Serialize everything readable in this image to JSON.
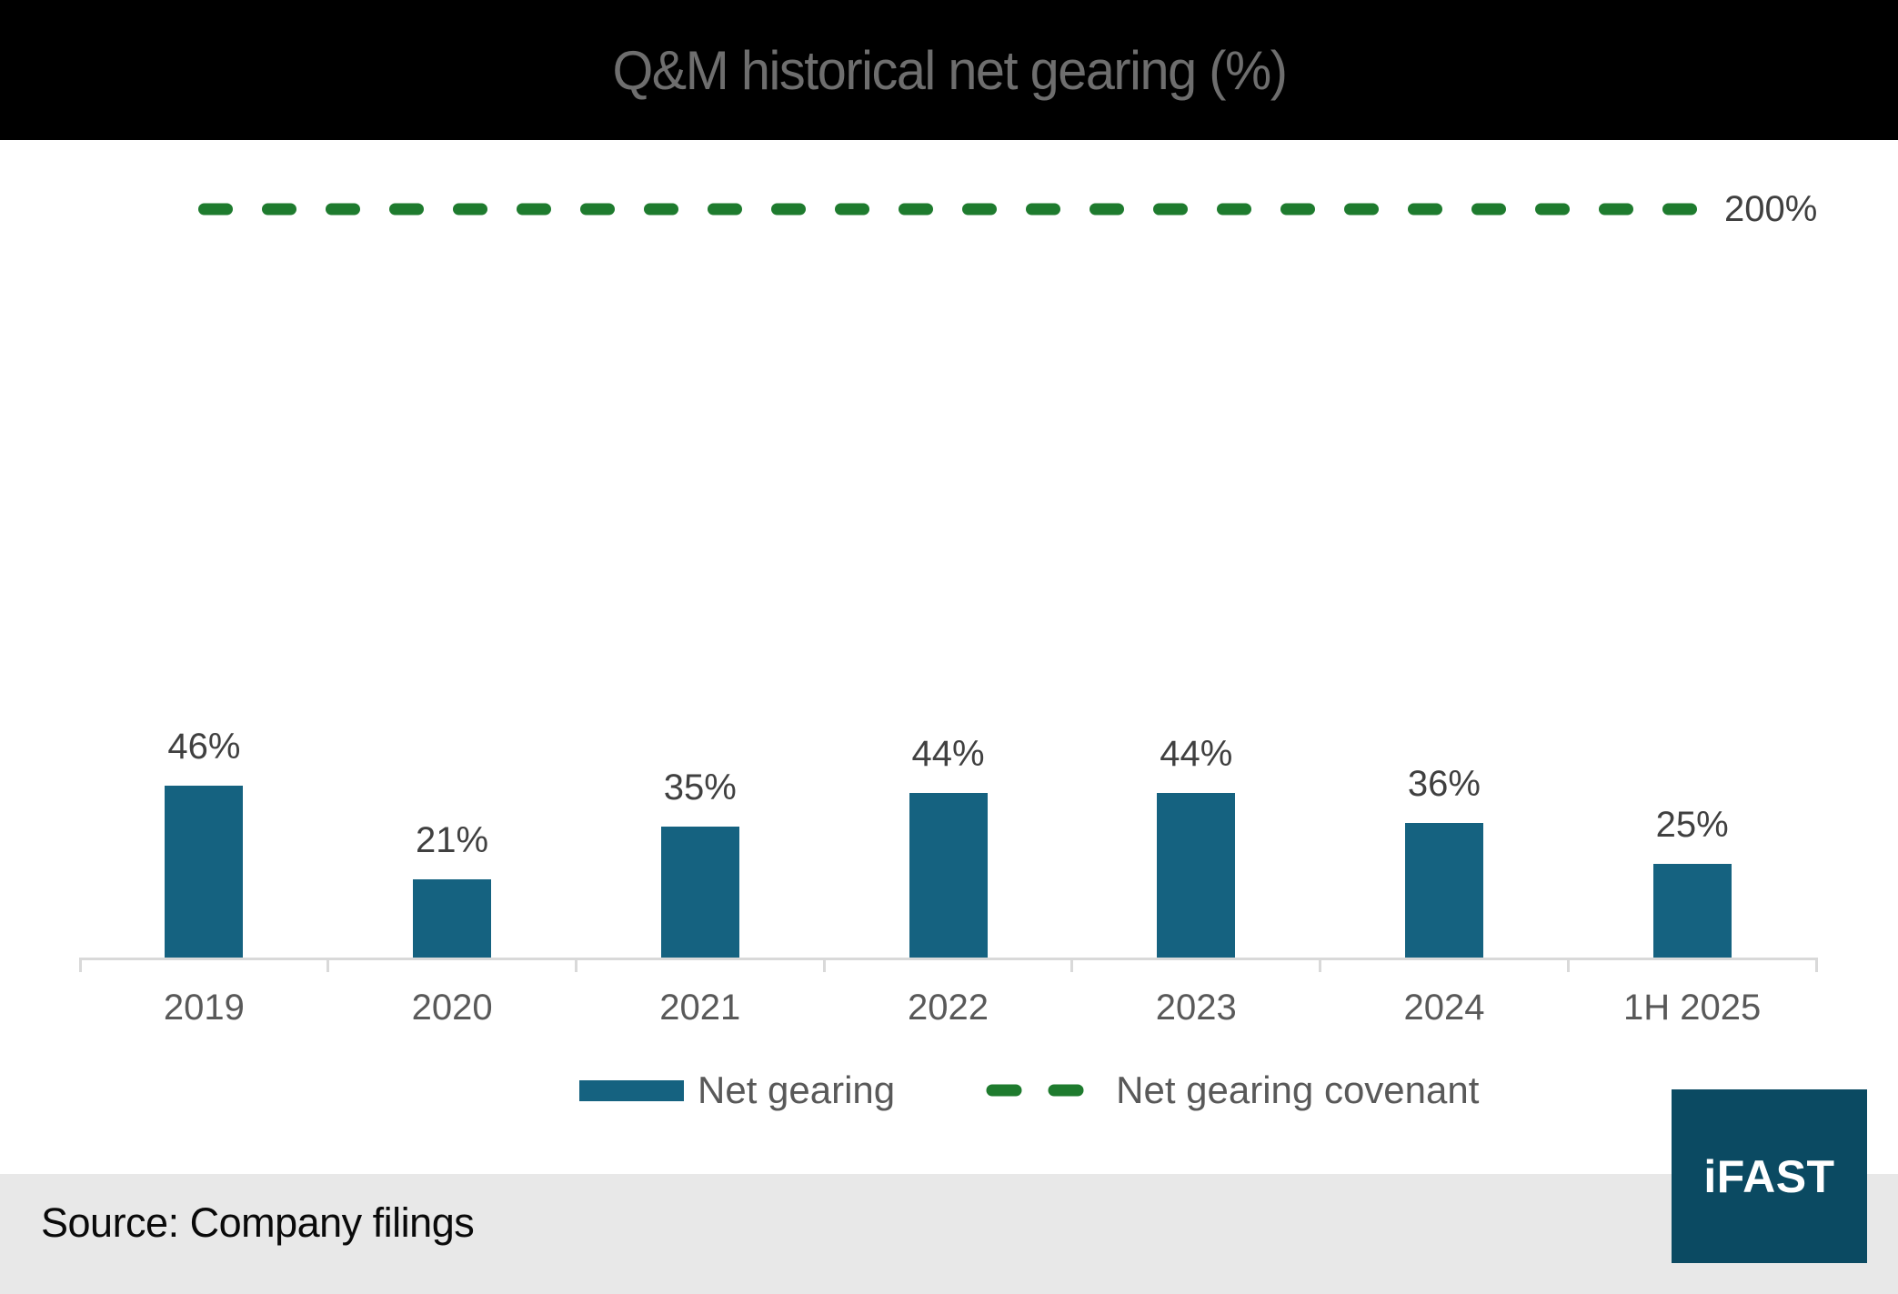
{
  "header": {
    "title": "Q&M historical net gearing (%)"
  },
  "chart_data": {
    "type": "bar",
    "title": "Q&M historical net gearing (%)",
    "categories": [
      "2019",
      "2020",
      "2021",
      "2022",
      "2023",
      "2024",
      "1H 2025"
    ],
    "series": [
      {
        "name": "Net gearing",
        "type": "bar",
        "values": [
          46,
          21,
          35,
          44,
          44,
          36,
          25
        ]
      },
      {
        "name": "Net gearing covenant",
        "type": "dashed-line",
        "value": 200
      }
    ],
    "value_suffix": "%",
    "covenant_label": "200%",
    "xlabel": "",
    "ylabel": "",
    "ylim": [
      0,
      256
    ],
    "grid": false,
    "legend_position": "bottom",
    "colors": {
      "bar": "#156280",
      "covenant": "#1e7b2e",
      "axis": "#d9d9d9"
    }
  },
  "legend": {
    "items": [
      {
        "label": "Net gearing",
        "swatch": "bar"
      },
      {
        "label": "Net gearing covenant",
        "swatch": "dash"
      }
    ]
  },
  "footer": {
    "source": "Source: Company filings"
  },
  "logo": {
    "text": "iFAST"
  }
}
